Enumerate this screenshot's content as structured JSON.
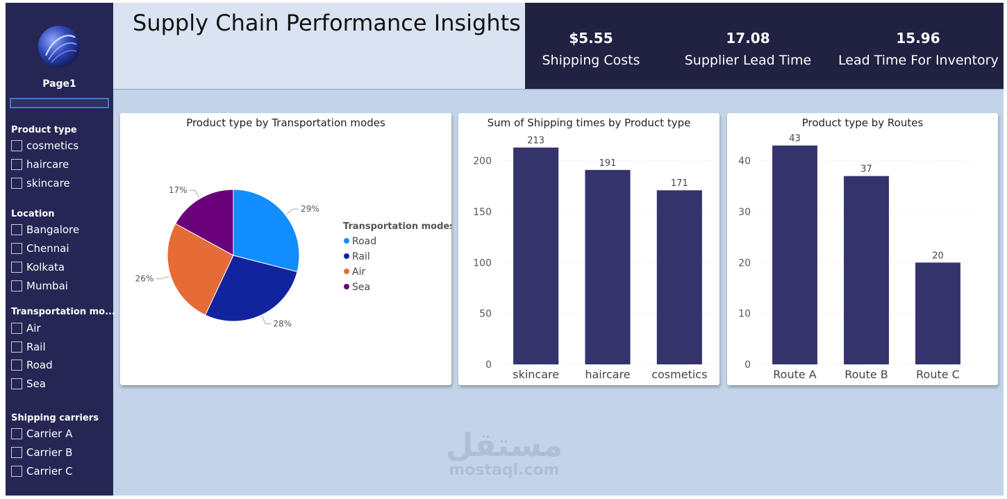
{
  "header": {
    "title": "Supply Chain Performance Insights"
  },
  "sidebar": {
    "page_label": "Page1",
    "groups": [
      {
        "title": "Product type",
        "items": [
          "cosmetics",
          "haircare",
          "skincare"
        ]
      },
      {
        "title": "Location",
        "items": [
          "Bangalore",
          "Chennai",
          "Kolkata",
          "Mumbai"
        ]
      },
      {
        "title": "Transportation mo...",
        "items": [
          "Air",
          "Rail",
          "Road",
          "Sea"
        ]
      },
      {
        "title": "Shipping carriers",
        "items": [
          "Carrier A",
          "Carrier B",
          "Carrier C"
        ]
      }
    ]
  },
  "kpis": [
    {
      "value": "$5.55",
      "label": "Shipping Costs"
    },
    {
      "value": "17.08",
      "label": "Supplier Lead Time"
    },
    {
      "value": "15.96",
      "label": "Lead Time For Inventory"
    }
  ],
  "colors": {
    "sidebar": "#262654",
    "kpi_band": "#212142",
    "title_band": "#dae3f1",
    "canvas": "#c3d4e8",
    "bar": "#35336c"
  },
  "icons": {
    "logo": "swirl-globe-logo-icon"
  },
  "watermark": {
    "arabic": "مستقل",
    "latin": "mostaql.com"
  },
  "chart_data": [
    {
      "type": "pie",
      "title": "Product type by Transportation modes",
      "legend_title": "Transportation modes",
      "legend_position": "right",
      "categories": [
        "Road",
        "Rail",
        "Air",
        "Sea"
      ],
      "values": [
        29,
        28,
        26,
        17
      ],
      "labels": [
        "29%",
        "28%",
        "26%",
        "17%"
      ],
      "colors": [
        "#118dff",
        "#12239e",
        "#e66c37",
        "#6b007b"
      ]
    },
    {
      "type": "bar",
      "title": "Sum of Shipping times by Product type",
      "categories": [
        "skincare",
        "haircare",
        "cosmetics"
      ],
      "values": [
        213,
        191,
        171
      ],
      "ylim": [
        0,
        225
      ],
      "yticks": [
        0,
        50,
        100,
        150,
        200
      ],
      "grid": true,
      "color": "#35336c"
    },
    {
      "type": "bar",
      "title": "Product type by Routes",
      "categories": [
        "Route A",
        "Route B",
        "Route C"
      ],
      "values": [
        43,
        37,
        20
      ],
      "ylim": [
        0,
        45
      ],
      "yticks": [
        0,
        10,
        20,
        30,
        40
      ],
      "grid": true,
      "color": "#35336c"
    }
  ]
}
